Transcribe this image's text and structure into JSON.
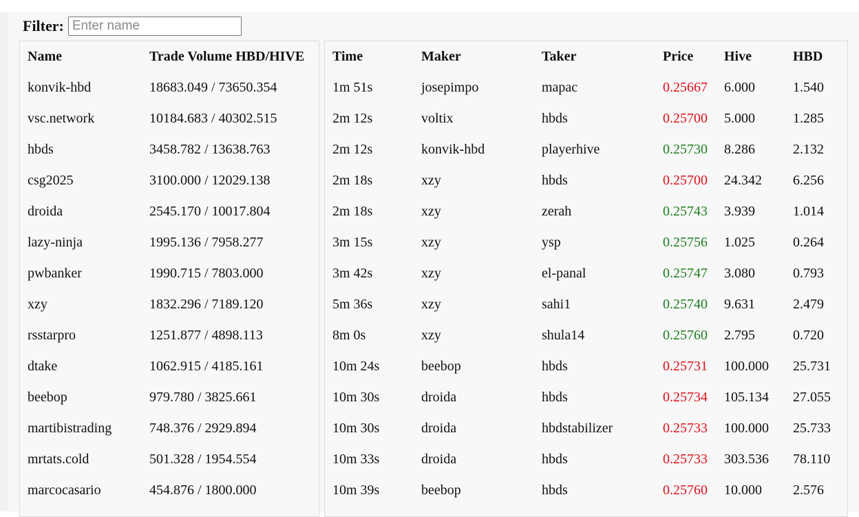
{
  "filter": {
    "label": "Filter:",
    "placeholder": "Enter name",
    "value": ""
  },
  "volume_table": {
    "headers": {
      "name": "Name",
      "volume": "Trade Volume HBD/HIVE"
    },
    "rows": [
      {
        "name": "konvik-hbd",
        "volume": "18683.049 / 73650.354"
      },
      {
        "name": "vsc.network",
        "volume": "10184.683 / 40302.515"
      },
      {
        "name": "hbds",
        "volume": "3458.782 / 13638.763"
      },
      {
        "name": "csg2025",
        "volume": "3100.000 / 12029.138"
      },
      {
        "name": "droida",
        "volume": "2545.170 / 10017.804"
      },
      {
        "name": "lazy-ninja",
        "volume": "1995.136 / 7958.277"
      },
      {
        "name": "pwbanker",
        "volume": "1990.715 / 7803.000"
      },
      {
        "name": "xzy",
        "volume": "1832.296 / 7189.120"
      },
      {
        "name": "rsstarpro",
        "volume": "1251.877 / 4898.113"
      },
      {
        "name": "dtake",
        "volume": "1062.915 / 4185.161"
      },
      {
        "name": "beebop",
        "volume": "979.780 / 3825.661"
      },
      {
        "name": "martibistrading",
        "volume": "748.376 / 2929.894"
      },
      {
        "name": "mrtats.cold",
        "volume": "501.328 / 1954.554"
      },
      {
        "name": "marcocasario",
        "volume": "454.876 / 1800.000"
      }
    ]
  },
  "trades_table": {
    "headers": {
      "time": "Time",
      "maker": "Maker",
      "taker": "Taker",
      "price": "Price",
      "hive": "Hive",
      "hbd": "HBD"
    },
    "colors": {
      "up": "#1c7c1c",
      "down": "#e0101a"
    },
    "rows": [
      {
        "time": "1m 51s",
        "maker": "josepimpo",
        "taker": "mapac",
        "price": "0.25667",
        "direction": "down",
        "hive": "6.000",
        "hbd": "1.540"
      },
      {
        "time": "2m 12s",
        "maker": "voltix",
        "taker": "hbds",
        "price": "0.25700",
        "direction": "down",
        "hive": "5.000",
        "hbd": "1.285"
      },
      {
        "time": "2m 12s",
        "maker": "konvik-hbd",
        "taker": "playerhive",
        "price": "0.25730",
        "direction": "up",
        "hive": "8.286",
        "hbd": "2.132"
      },
      {
        "time": "2m 18s",
        "maker": "xzy",
        "taker": "hbds",
        "price": "0.25700",
        "direction": "down",
        "hive": "24.342",
        "hbd": "6.256"
      },
      {
        "time": "2m 18s",
        "maker": "xzy",
        "taker": "zerah",
        "price": "0.25743",
        "direction": "up",
        "hive": "3.939",
        "hbd": "1.014"
      },
      {
        "time": "3m 15s",
        "maker": "xzy",
        "taker": "ysp",
        "price": "0.25756",
        "direction": "up",
        "hive": "1.025",
        "hbd": "0.264"
      },
      {
        "time": "3m 42s",
        "maker": "xzy",
        "taker": "el-panal",
        "price": "0.25747",
        "direction": "up",
        "hive": "3.080",
        "hbd": "0.793"
      },
      {
        "time": "5m 36s",
        "maker": "xzy",
        "taker": "sahi1",
        "price": "0.25740",
        "direction": "up",
        "hive": "9.631",
        "hbd": "2.479"
      },
      {
        "time": "8m 0s",
        "maker": "xzy",
        "taker": "shula14",
        "price": "0.25760",
        "direction": "up",
        "hive": "2.795",
        "hbd": "0.720"
      },
      {
        "time": "10m 24s",
        "maker": "beebop",
        "taker": "hbds",
        "price": "0.25731",
        "direction": "down",
        "hive": "100.000",
        "hbd": "25.731"
      },
      {
        "time": "10m 30s",
        "maker": "droida",
        "taker": "hbds",
        "price": "0.25734",
        "direction": "down",
        "hive": "105.134",
        "hbd": "27.055"
      },
      {
        "time": "10m 30s",
        "maker": "droida",
        "taker": "hbdstabilizer",
        "price": "0.25733",
        "direction": "down",
        "hive": "100.000",
        "hbd": "25.733"
      },
      {
        "time": "10m 33s",
        "maker": "droida",
        "taker": "hbds",
        "price": "0.25733",
        "direction": "down",
        "hive": "303.536",
        "hbd": "78.110"
      },
      {
        "time": "10m 39s",
        "maker": "beebop",
        "taker": "hbds",
        "price": "0.25760",
        "direction": "down",
        "hive": "10.000",
        "hbd": "2.576"
      }
    ]
  }
}
